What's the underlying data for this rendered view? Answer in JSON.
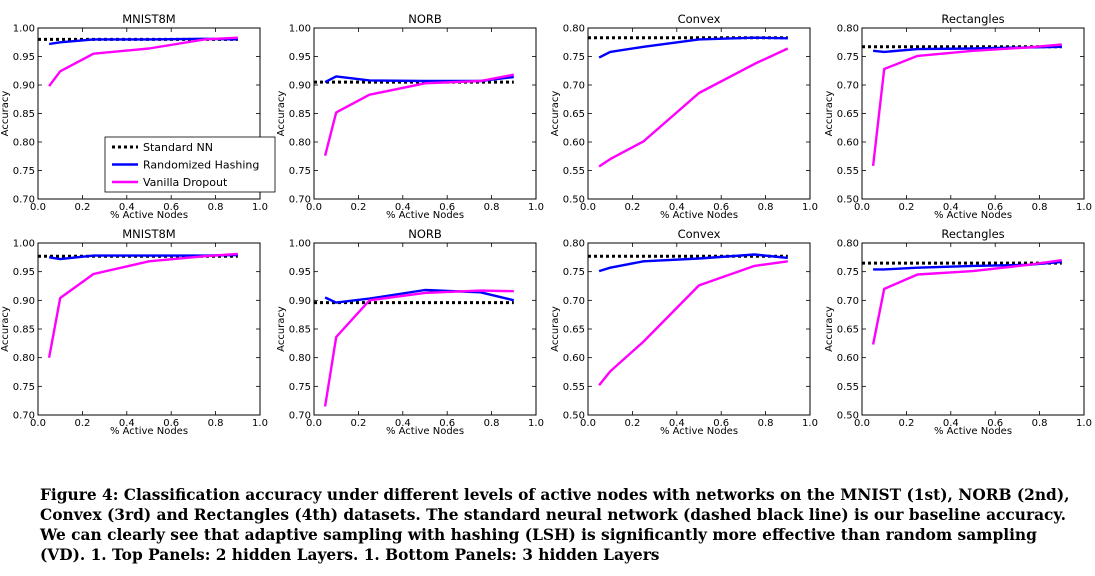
{
  "legend": {
    "entries": [
      {
        "label": "Standard NN",
        "color": "#000000",
        "dash": true
      },
      {
        "label": "Randomized Hashing",
        "color": "#0000ff",
        "dash": false
      },
      {
        "label": "Vanilla Dropout",
        "color": "#ff00ff",
        "dash": false
      }
    ]
  },
  "caption": "Figure 4: Classification accuracy under different levels of active nodes with networks on the MNIST (1st), NORB (2nd), Convex (3rd) and Rectangles (4th) datasets. The standard neural network (dashed black line) is our baseline accuracy. We can clearly see that adaptive sampling with hashing (LSH) is significantly more effective than random sampling (VD). 1. Top Panels: 2 hidden Layers. 1. Bottom Panels: 3 hidden Layers",
  "chart_data": [
    {
      "type": "line",
      "title": "MNIST8M",
      "xlabel": "% Active Nodes",
      "ylabel": "Accuracy",
      "xlim": [
        0.0,
        1.0
      ],
      "ylim": [
        0.7,
        1.0
      ],
      "xticks": [
        "0.0",
        "0.2",
        "0.4",
        "0.6",
        "0.8",
        "1.0"
      ],
      "yticks": [
        "0.70",
        "0.75",
        "0.80",
        "0.85",
        "0.90",
        "0.95",
        "1.00"
      ],
      "series": [
        {
          "name": "Standard NN",
          "color": "#000000",
          "dashed": true,
          "x": [
            0.0,
            0.9
          ],
          "y": [
            0.98,
            0.98
          ]
        },
        {
          "name": "Randomized Hashing",
          "color": "#0000ff",
          "x": [
            0.05,
            0.1,
            0.25,
            0.5,
            0.75,
            0.9
          ],
          "y": [
            0.972,
            0.975,
            0.98,
            0.98,
            0.981,
            0.98
          ]
        },
        {
          "name": "Vanilla Dropout",
          "color": "#ff00ff",
          "x": [
            0.05,
            0.1,
            0.25,
            0.5,
            0.75,
            0.9
          ],
          "y": [
            0.898,
            0.924,
            0.955,
            0.964,
            0.98,
            0.983
          ]
        }
      ]
    },
    {
      "type": "line",
      "title": "NORB",
      "xlabel": "% Active Nodes",
      "ylabel": "Accuracy",
      "xlim": [
        0.0,
        1.0
      ],
      "ylim": [
        0.7,
        1.0
      ],
      "xticks": [
        "0.0",
        "0.2",
        "0.4",
        "0.6",
        "0.8",
        "1.0"
      ],
      "yticks": [
        "0.70",
        "0.75",
        "0.80",
        "0.85",
        "0.90",
        "0.95",
        "1.00"
      ],
      "series": [
        {
          "name": "Standard NN",
          "color": "#000000",
          "dashed": true,
          "x": [
            0.0,
            0.9
          ],
          "y": [
            0.905,
            0.905
          ]
        },
        {
          "name": "Randomized Hashing",
          "color": "#0000ff",
          "x": [
            0.05,
            0.1,
            0.25,
            0.5,
            0.75,
            0.9
          ],
          "y": [
            0.905,
            0.915,
            0.908,
            0.907,
            0.907,
            0.914
          ]
        },
        {
          "name": "Vanilla Dropout",
          "color": "#ff00ff",
          "x": [
            0.05,
            0.1,
            0.25,
            0.5,
            0.75,
            0.9
          ],
          "y": [
            0.776,
            0.852,
            0.883,
            0.903,
            0.907,
            0.918
          ]
        }
      ]
    },
    {
      "type": "line",
      "title": "Convex",
      "xlabel": "% Active Nodes",
      "ylabel": "Accuracy",
      "xlim": [
        0.0,
        1.0
      ],
      "ylim": [
        0.5,
        0.8
      ],
      "xticks": [
        "0.0",
        "0.2",
        "0.4",
        "0.6",
        "0.8",
        "1.0"
      ],
      "yticks": [
        "0.50",
        "0.55",
        "0.60",
        "0.65",
        "0.70",
        "0.75",
        "0.80"
      ],
      "series": [
        {
          "name": "Standard NN",
          "color": "#000000",
          "dashed": true,
          "x": [
            0.0,
            0.9
          ],
          "y": [
            0.783,
            0.783
          ]
        },
        {
          "name": "Randomized Hashing",
          "color": "#0000ff",
          "x": [
            0.05,
            0.1,
            0.25,
            0.5,
            0.75,
            0.9
          ],
          "y": [
            0.748,
            0.758,
            0.767,
            0.78,
            0.783,
            0.782
          ]
        },
        {
          "name": "Vanilla Dropout",
          "color": "#ff00ff",
          "x": [
            0.05,
            0.1,
            0.25,
            0.5,
            0.75,
            0.9
          ],
          "y": [
            0.557,
            0.57,
            0.601,
            0.686,
            0.737,
            0.764
          ]
        }
      ]
    },
    {
      "type": "line",
      "title": "Rectangles",
      "xlabel": "% Active Nodes",
      "ylabel": "Accuracy",
      "xlim": [
        0.0,
        1.0
      ],
      "ylim": [
        0.5,
        0.8
      ],
      "xticks": [
        "0.0",
        "0.2",
        "0.4",
        "0.6",
        "0.8",
        "1.0"
      ],
      "yticks": [
        "0.50",
        "0.55",
        "0.60",
        "0.65",
        "0.70",
        "0.75",
        "0.80"
      ],
      "series": [
        {
          "name": "Standard NN",
          "color": "#000000",
          "dashed": true,
          "x": [
            0.0,
            0.9
          ],
          "y": [
            0.767,
            0.767
          ]
        },
        {
          "name": "Randomized Hashing",
          "color": "#0000ff",
          "x": [
            0.05,
            0.1,
            0.25,
            0.5,
            0.75,
            0.9
          ],
          "y": [
            0.76,
            0.758,
            0.763,
            0.764,
            0.766,
            0.767
          ]
        },
        {
          "name": "Vanilla Dropout",
          "color": "#ff00ff",
          "x": [
            0.05,
            0.1,
            0.25,
            0.5,
            0.75,
            0.9
          ],
          "y": [
            0.558,
            0.728,
            0.751,
            0.76,
            0.766,
            0.771
          ]
        }
      ]
    },
    {
      "type": "line",
      "title": "MNIST8M",
      "xlabel": "% Active Nodes",
      "ylabel": "Accuracy",
      "xlim": [
        0.0,
        1.0
      ],
      "ylim": [
        0.7,
        1.0
      ],
      "xticks": [
        "0.0",
        "0.2",
        "0.4",
        "0.6",
        "0.8",
        "1.0"
      ],
      "yticks": [
        "0.70",
        "0.75",
        "0.80",
        "0.85",
        "0.90",
        "0.95",
        "1.00"
      ],
      "series": [
        {
          "name": "Standard NN",
          "color": "#000000",
          "dashed": true,
          "x": [
            0.0,
            0.9
          ],
          "y": [
            0.977,
            0.977
          ]
        },
        {
          "name": "Randomized Hashing",
          "color": "#0000ff",
          "x": [
            0.05,
            0.1,
            0.25,
            0.5,
            0.75,
            0.9
          ],
          "y": [
            0.975,
            0.972,
            0.978,
            0.978,
            0.978,
            0.979
          ]
        },
        {
          "name": "Vanilla Dropout",
          "color": "#ff00ff",
          "x": [
            0.05,
            0.1,
            0.25,
            0.5,
            0.75,
            0.9
          ],
          "y": [
            0.8,
            0.904,
            0.946,
            0.968,
            0.977,
            0.981
          ]
        }
      ]
    },
    {
      "type": "line",
      "title": "NORB",
      "xlabel": "% Active Nodes",
      "ylabel": "Accuracy",
      "xlim": [
        0.0,
        1.0
      ],
      "ylim": [
        0.7,
        1.0
      ],
      "xticks": [
        "0.0",
        "0.2",
        "0.4",
        "0.6",
        "0.8",
        "1.0"
      ],
      "yticks": [
        "0.70",
        "0.75",
        "0.80",
        "0.85",
        "0.90",
        "0.95",
        "1.00"
      ],
      "series": [
        {
          "name": "Standard NN",
          "color": "#000000",
          "dashed": true,
          "x": [
            0.0,
            0.9
          ],
          "y": [
            0.896,
            0.896
          ]
        },
        {
          "name": "Randomized Hashing",
          "color": "#0000ff",
          "x": [
            0.05,
            0.1,
            0.25,
            0.5,
            0.75,
            0.9
          ],
          "y": [
            0.905,
            0.896,
            0.903,
            0.918,
            0.914,
            0.9
          ]
        },
        {
          "name": "Vanilla Dropout",
          "color": "#ff00ff",
          "x": [
            0.05,
            0.1,
            0.25,
            0.5,
            0.75,
            0.9
          ],
          "y": [
            0.715,
            0.836,
            0.9,
            0.913,
            0.917,
            0.916
          ]
        }
      ]
    },
    {
      "type": "line",
      "title": "Convex",
      "xlabel": "% Active Nodes",
      "ylabel": "Accuracy",
      "xlim": [
        0.0,
        1.0
      ],
      "ylim": [
        0.5,
        0.8
      ],
      "xticks": [
        "0.0",
        "0.2",
        "0.4",
        "0.6",
        "0.8",
        "1.0"
      ],
      "yticks": [
        "0.50",
        "0.55",
        "0.60",
        "0.65",
        "0.70",
        "0.75",
        "0.80"
      ],
      "series": [
        {
          "name": "Standard NN",
          "color": "#000000",
          "dashed": true,
          "x": [
            0.0,
            0.9
          ],
          "y": [
            0.777,
            0.777
          ]
        },
        {
          "name": "Randomized Hashing",
          "color": "#0000ff",
          "x": [
            0.05,
            0.1,
            0.25,
            0.5,
            0.75,
            0.9
          ],
          "y": [
            0.751,
            0.757,
            0.768,
            0.773,
            0.78,
            0.774
          ]
        },
        {
          "name": "Vanilla Dropout",
          "color": "#ff00ff",
          "x": [
            0.05,
            0.1,
            0.25,
            0.5,
            0.75,
            0.9
          ],
          "y": [
            0.552,
            0.576,
            0.628,
            0.726,
            0.76,
            0.768
          ]
        }
      ]
    },
    {
      "type": "line",
      "title": "Rectangles",
      "xlabel": "% Active Nodes",
      "ylabel": "Accuracy",
      "xlim": [
        0.0,
        1.0
      ],
      "ylim": [
        0.5,
        0.8
      ],
      "xticks": [
        "0.0",
        "0.2",
        "0.4",
        "0.6",
        "0.8",
        "1.0"
      ],
      "yticks": [
        "0.50",
        "0.55",
        "0.60",
        "0.65",
        "0.70",
        "0.75",
        "0.80"
      ],
      "series": [
        {
          "name": "Standard NN",
          "color": "#000000",
          "dashed": true,
          "x": [
            0.0,
            0.9
          ],
          "y": [
            0.765,
            0.765
          ]
        },
        {
          "name": "Randomized Hashing",
          "color": "#0000ff",
          "x": [
            0.05,
            0.1,
            0.25,
            0.5,
            0.75,
            0.9
          ],
          "y": [
            0.754,
            0.754,
            0.757,
            0.76,
            0.762,
            0.767
          ]
        },
        {
          "name": "Vanilla Dropout",
          "color": "#ff00ff",
          "x": [
            0.05,
            0.1,
            0.25,
            0.5,
            0.75,
            0.9
          ],
          "y": [
            0.623,
            0.72,
            0.745,
            0.751,
            0.762,
            0.77
          ]
        }
      ]
    }
  ]
}
